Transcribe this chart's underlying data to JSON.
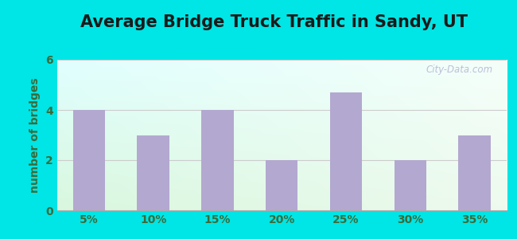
{
  "title": "Average Bridge Truck Traffic in Sandy, UT",
  "categories": [
    "5%",
    "10%",
    "15%",
    "20%",
    "25%",
    "30%",
    "35%"
  ],
  "values": [
    4,
    3,
    4,
    2,
    4.7,
    2,
    3
  ],
  "bar_color": "#b3a8d0",
  "ylabel": "number of bridges",
  "ylim": [
    0,
    6
  ],
  "yticks": [
    0,
    2,
    4,
    6
  ],
  "title_fontsize": 15,
  "label_fontsize": 10,
  "tick_fontsize": 10,
  "axis_label_color": "#3a6b3a",
  "tick_label_color": "#3a6b3a",
  "background_outer": "#00e5e5",
  "watermark": "City-Data.com",
  "grid_color": "#dddddd"
}
